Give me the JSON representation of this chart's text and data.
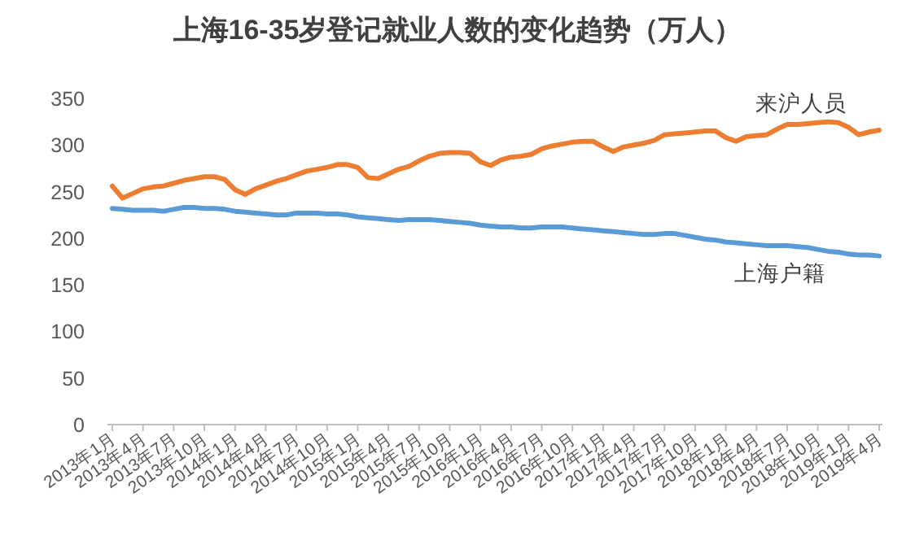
{
  "chart_data": {
    "type": "line",
    "title": "上海16-35岁登记就业人数的变化趋势（万人）",
    "categories": [
      "2013年1月",
      null,
      null,
      "2013年4月",
      null,
      null,
      "2013年7月",
      null,
      null,
      "2013年10月",
      null,
      null,
      "2014年1月",
      null,
      null,
      "2014年4月",
      null,
      null,
      "2014年7月",
      null,
      null,
      "2014年10月",
      null,
      null,
      "2015年1月",
      null,
      null,
      "2015年4月",
      null,
      null,
      "2015年7月",
      null,
      null,
      "2015年10月",
      null,
      null,
      "2016年1月",
      null,
      null,
      "2016年4月",
      null,
      null,
      "2016年7月",
      null,
      null,
      "2016年10月",
      null,
      null,
      "2017年1月",
      null,
      null,
      "2017年4月",
      null,
      null,
      "2017年7月",
      null,
      null,
      "2017年10月",
      null,
      null,
      "2018年1月",
      null,
      null,
      "2018年4月",
      null,
      null,
      "2018年7月",
      null,
      null,
      "2018年10月",
      null,
      null,
      "2019年1月",
      null,
      null,
      "2019年4月"
    ],
    "series": [
      {
        "name": "来沪人员",
        "color": "#ed7d31",
        "values": [
          256,
          243,
          248,
          253,
          255,
          256,
          259,
          262,
          264,
          266,
          266,
          263,
          252,
          247,
          253,
          257,
          261,
          264,
          268,
          272,
          274,
          276,
          279,
          279,
          276,
          265,
          264,
          269,
          274,
          277,
          283,
          288,
          291,
          292,
          292,
          291,
          282,
          278,
          284,
          287,
          288,
          290,
          296,
          299,
          301,
          303,
          304,
          304,
          298,
          293,
          298,
          300,
          302,
          305,
          311,
          312,
          313,
          314,
          315,
          315,
          308,
          304,
          309,
          310,
          311,
          317,
          322,
          322,
          323,
          324,
          325,
          324,
          319,
          311,
          314,
          316
        ]
      },
      {
        "name": "上海户籍",
        "color": "#5b9bd5",
        "values": [
          232,
          231,
          230,
          230,
          230,
          229,
          231,
          233,
          233,
          232,
          232,
          231,
          229,
          228,
          227,
          226,
          225,
          225,
          227,
          227,
          227,
          226,
          226,
          225,
          223,
          222,
          221,
          220,
          219,
          220,
          220,
          220,
          219,
          218,
          217,
          216,
          214,
          213,
          212,
          212,
          211,
          211,
          212,
          212,
          212,
          211,
          210,
          209,
          208,
          207,
          206,
          205,
          204,
          204,
          205,
          205,
          203,
          201,
          199,
          198,
          196,
          195,
          194,
          193,
          192,
          192,
          192,
          191,
          190,
          188,
          186,
          185,
          183,
          182,
          182,
          181
        ]
      }
    ],
    "ylim": [
      0,
      350
    ],
    "yticks": [
      0,
      50,
      100,
      150,
      200,
      250,
      300,
      350
    ],
    "grid": false,
    "legend": false,
    "marker": "none",
    "line_style": "solid"
  }
}
